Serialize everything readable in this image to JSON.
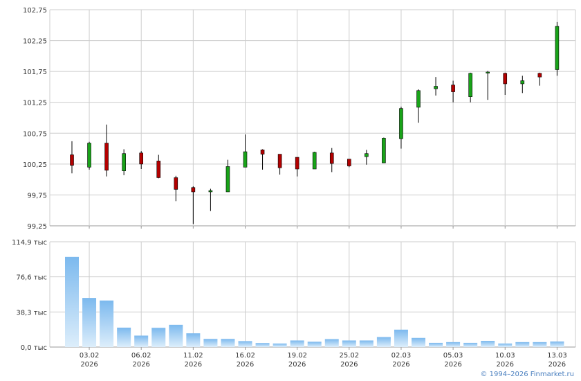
{
  "copyright": "© 1994–2026 Finmarket.ru",
  "colors": {
    "up": "#19a319",
    "down": "#b30000",
    "volume_top": "#7cb9ee",
    "volume_bottom": "#ddeefb",
    "grid": "#cccccc"
  },
  "chart_data": [
    {
      "type": "candlestick",
      "title": "",
      "ylim": [
        99.25,
        102.75
      ],
      "y_ticks": [
        "102,75",
        "102,25",
        "101,75",
        "101,25",
        "100,75",
        "100,25",
        "99,75",
        "99,25"
      ],
      "y_tick_values": [
        102.75,
        102.25,
        101.75,
        101.25,
        100.75,
        100.25,
        99.75,
        99.25
      ],
      "x_ticks": [
        {
          "index": 1,
          "date": "03.02",
          "year": "2026"
        },
        {
          "index": 4,
          "date": "06.02",
          "year": "2026"
        },
        {
          "index": 7,
          "date": "11.02",
          "year": "2026"
        },
        {
          "index": 10,
          "date": "16.02",
          "year": "2026"
        },
        {
          "index": 13,
          "date": "19.02",
          "year": "2026"
        },
        {
          "index": 16,
          "date": "25.02",
          "year": "2026"
        },
        {
          "index": 19,
          "date": "02.03",
          "year": "2026"
        },
        {
          "index": 22,
          "date": "05.03",
          "year": "2026"
        },
        {
          "index": 25,
          "date": "10.03",
          "year": "2026"
        },
        {
          "index": 28,
          "date": "13.03",
          "year": "2026"
        }
      ],
      "candles": [
        {
          "o": 100.4,
          "h": 100.62,
          "l": 100.1,
          "c": 100.23
        },
        {
          "o": 100.2,
          "h": 100.61,
          "l": 100.16,
          "c": 100.59
        },
        {
          "o": 100.59,
          "h": 100.89,
          "l": 100.05,
          "c": 100.15
        },
        {
          "o": 100.14,
          "h": 100.49,
          "l": 100.07,
          "c": 100.42
        },
        {
          "o": 100.43,
          "h": 100.46,
          "l": 100.17,
          "c": 100.25
        },
        {
          "o": 100.3,
          "h": 100.4,
          "l": 100.02,
          "c": 100.03
        },
        {
          "o": 100.03,
          "h": 100.06,
          "l": 99.65,
          "c": 99.84
        },
        {
          "o": 99.87,
          "h": 99.89,
          "l": 99.28,
          "c": 99.8
        },
        {
          "o": 99.8,
          "h": 99.85,
          "l": 99.49,
          "c": 99.82
        },
        {
          "o": 99.8,
          "h": 100.32,
          "l": 99.8,
          "c": 100.21
        },
        {
          "o": 100.2,
          "h": 100.73,
          "l": 100.2,
          "c": 100.45
        },
        {
          "o": 100.48,
          "h": 100.49,
          "l": 100.16,
          "c": 100.41
        },
        {
          "o": 100.41,
          "h": 100.41,
          "l": 100.08,
          "c": 100.19
        },
        {
          "o": 100.36,
          "h": 100.36,
          "l": 100.05,
          "c": 100.17
        },
        {
          "o": 100.17,
          "h": 100.45,
          "l": 100.17,
          "c": 100.44
        },
        {
          "o": 100.43,
          "h": 100.51,
          "l": 100.12,
          "c": 100.26
        },
        {
          "o": 100.33,
          "h": 100.33,
          "l": 100.2,
          "c": 100.22
        },
        {
          "o": 100.37,
          "h": 100.48,
          "l": 100.24,
          "c": 100.42
        },
        {
          "o": 100.27,
          "h": 100.68,
          "l": 100.27,
          "c": 100.67
        },
        {
          "o": 100.66,
          "h": 101.18,
          "l": 100.5,
          "c": 101.15
        },
        {
          "o": 101.17,
          "h": 101.46,
          "l": 100.92,
          "c": 101.44
        },
        {
          "o": 101.47,
          "h": 101.66,
          "l": 101.36,
          "c": 101.51
        },
        {
          "o": 101.53,
          "h": 101.6,
          "l": 101.25,
          "c": 101.42
        },
        {
          "o": 101.34,
          "h": 101.73,
          "l": 101.25,
          "c": 101.72
        },
        {
          "o": 101.73,
          "h": 101.76,
          "l": 101.29,
          "c": 101.74
        },
        {
          "o": 101.72,
          "h": 101.73,
          "l": 101.37,
          "c": 101.55
        },
        {
          "o": 101.55,
          "h": 101.68,
          "l": 101.4,
          "c": 101.6
        },
        {
          "o": 101.72,
          "h": 101.73,
          "l": 101.52,
          "c": 101.66
        },
        {
          "o": 101.78,
          "h": 102.55,
          "l": 101.68,
          "c": 102.48
        }
      ]
    },
    {
      "type": "bar",
      "title": "",
      "ylim": [
        0,
        114.9
      ],
      "y_ticks": [
        "114,9 тыс",
        "76,6 тыс",
        "38,3 тыс",
        "0,0 тыс"
      ],
      "y_tick_values": [
        114.9,
        76.6,
        38.3,
        0.0
      ],
      "values": [
        98.4,
        53.6,
        50.8,
        21.2,
        12.5,
        21.0,
        24.3,
        15.0,
        8.9,
        8.9,
        6.5,
        4.4,
        3.9,
        7.2,
        5.8,
        8.7,
        7.2,
        7.2,
        10.9,
        19.0,
        10.0,
        4.6,
        5.4,
        4.6,
        6.8,
        3.9,
        5.4,
        5.4,
        6.1
      ]
    }
  ]
}
